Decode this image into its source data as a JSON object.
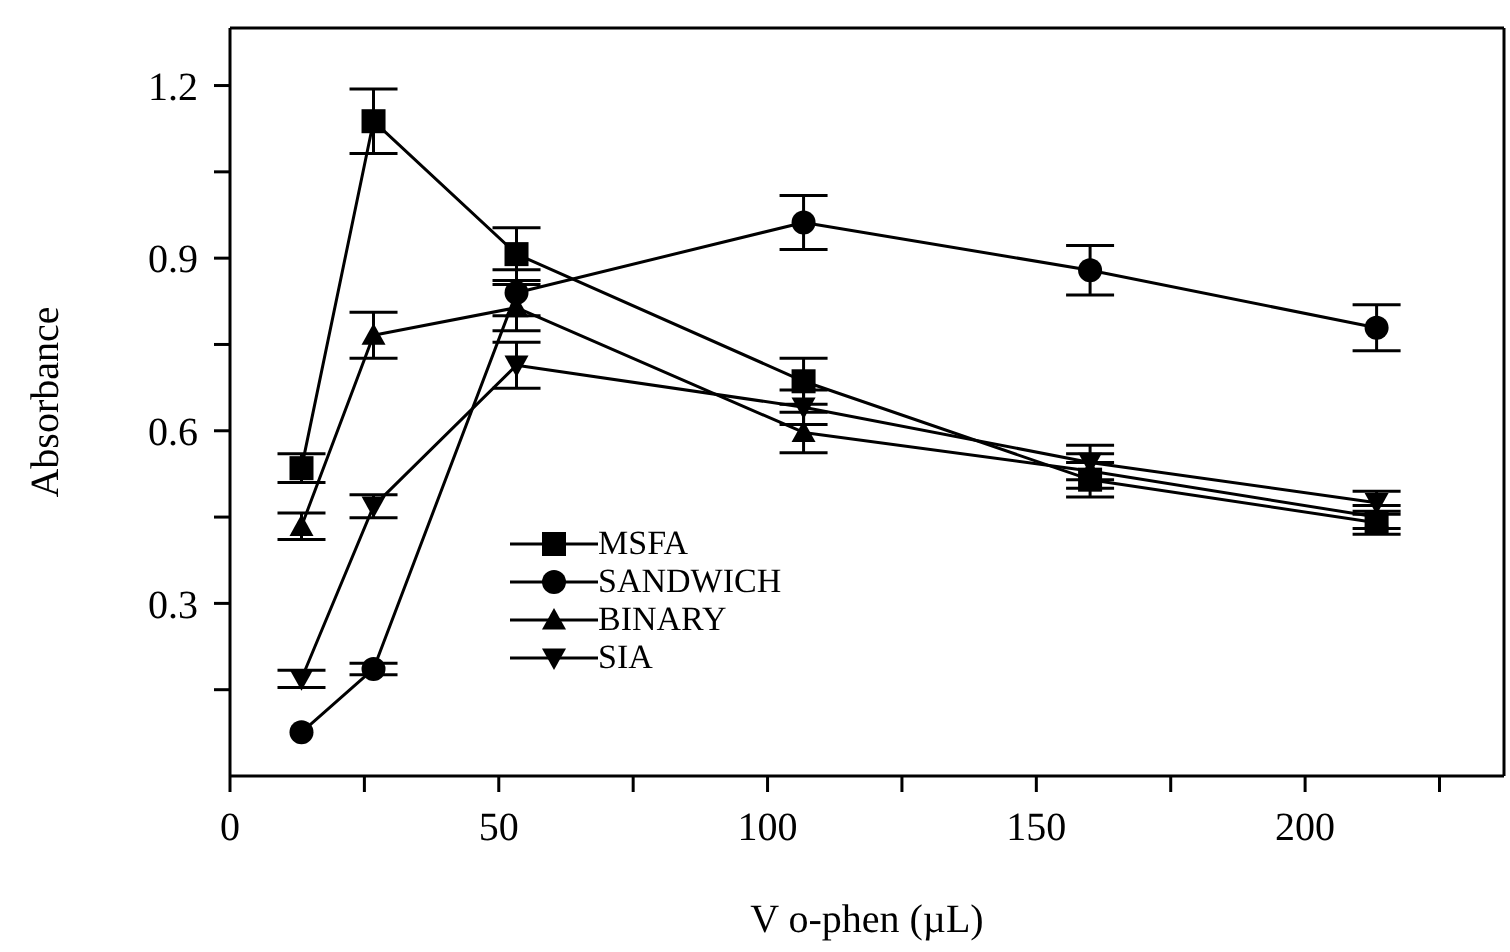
{
  "chart_data": {
    "type": "line",
    "xlabel": "V o-phen (µL)",
    "ylabel": "Absorbance",
    "x": [
      13.3,
      26.7,
      53.3,
      106.7,
      160,
      213.3
    ],
    "series": [
      {
        "name": "MSFA",
        "color": "#000000",
        "marker": "square",
        "values": [
          0.535,
          1.138,
          0.907,
          0.686,
          0.515,
          0.44
        ],
        "errors": [
          0.025,
          0.056,
          0.046,
          0.04,
          0.03,
          0.02
        ]
      },
      {
        "name": "SANDWICH",
        "color": "#000000",
        "marker": "circle",
        "values": [
          0.076,
          0.186,
          0.84,
          0.962,
          0.879,
          0.779
        ],
        "errors": [
          null,
          0.01,
          0.04,
          0.047,
          0.043,
          0.04
        ]
      },
      {
        "name": "BINARY",
        "color": "#000000",
        "marker": "triangle",
        "values": [
          0.434,
          0.766,
          0.814,
          0.597,
          0.53,
          0.45
        ],
        "errors": [
          0.023,
          0.04,
          0.04,
          0.035,
          0.03,
          0.02
        ]
      },
      {
        "name": "SIA",
        "color": "#000000",
        "marker": "triangle-down",
        "values": [
          0.169,
          0.469,
          0.714,
          0.641,
          0.545,
          0.475
        ],
        "errors": [
          0.015,
          0.02,
          0.04,
          0.03,
          0.03,
          0.02
        ]
      }
    ],
    "xlim": [
      0,
      237
    ],
    "xticks": [
      0,
      {
        "value": 25,
        "label": null
      },
      50,
      {
        "value": 75,
        "label": null
      },
      100,
      {
        "value": 125,
        "label": null
      },
      150,
      {
        "value": 175,
        "label": null
      },
      200,
      {
        "value": 225,
        "label": null
      }
    ],
    "ylim": [
      0,
      1.3
    ],
    "yticks": [
      {
        "value": 0.15,
        "label": null
      },
      0.3,
      {
        "value": 0.45,
        "label": null
      },
      0.6,
      {
        "value": 0.75,
        "label": null
      },
      0.9,
      {
        "value": 1.05,
        "label": null
      },
      1.2
    ],
    "legend": "bottom left",
    "line_style": "solid"
  }
}
